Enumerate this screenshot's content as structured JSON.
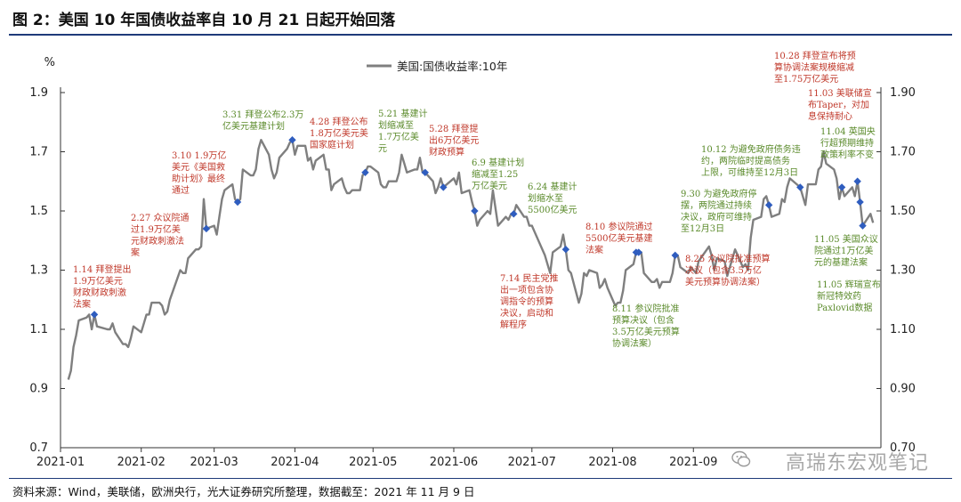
{
  "figure_title": "图 2：美国 10 年国债收益率自 10 月 21 日起开始回落",
  "source_note": "资料来源：Wind，美联储，欧洲央行，光大证券研究所整理，数据截至：2021 年 11 月 9 日",
  "watermark": "高瑞东宏观笔记",
  "colors": {
    "line": "#7f7f7f",
    "marker": "#2f5dbf",
    "red": "#c0392b",
    "green": "#5a8a2a",
    "rule": "#1f3b7a"
  },
  "chart_data": {
    "type": "line",
    "title": "",
    "ylabel": "%",
    "ylim": [
      0.7,
      1.9
    ],
    "yticks_left": [
      "1.9",
      "1.7",
      "1.5",
      "1.3",
      "1.1",
      "0.9",
      "0.7"
    ],
    "yticks_right": [
      "1.90",
      "1.70",
      "1.50",
      "1.30",
      "1.10",
      "0.90",
      "0.70"
    ],
    "x_tick_labels": [
      "2021-01",
      "2021-02",
      "2021-03",
      "2021-04",
      "2021-05",
      "2021-06",
      "2021-07",
      "2021-08",
      "2021-09"
    ],
    "legend": {
      "position": "top-center"
    },
    "series": [
      {
        "name": "美国:国债收益率:10年",
        "points": [
          [
            "2021-01-04",
            0.93
          ],
          [
            "2021-01-05",
            0.96
          ],
          [
            "2021-01-06",
            1.04
          ],
          [
            "2021-01-07",
            1.08
          ],
          [
            "2021-01-08",
            1.13
          ],
          [
            "2021-01-11",
            1.14
          ],
          [
            "2021-01-12",
            1.15
          ],
          [
            "2021-01-13",
            1.1
          ],
          [
            "2021-01-14",
            1.15
          ],
          [
            "2021-01-15",
            1.11
          ],
          [
            "2021-01-19",
            1.1
          ],
          [
            "2021-01-20",
            1.1
          ],
          [
            "2021-01-21",
            1.12
          ],
          [
            "2021-01-22",
            1.09
          ],
          [
            "2021-01-25",
            1.05
          ],
          [
            "2021-01-26",
            1.05
          ],
          [
            "2021-01-27",
            1.04
          ],
          [
            "2021-01-28",
            1.07
          ],
          [
            "2021-01-29",
            1.11
          ],
          [
            "2021-02-01",
            1.09
          ],
          [
            "2021-02-02",
            1.12
          ],
          [
            "2021-02-03",
            1.15
          ],
          [
            "2021-02-04",
            1.15
          ],
          [
            "2021-02-05",
            1.19
          ],
          [
            "2021-02-08",
            1.19
          ],
          [
            "2021-02-09",
            1.18
          ],
          [
            "2021-02-10",
            1.15
          ],
          [
            "2021-02-11",
            1.16
          ],
          [
            "2021-02-12",
            1.2
          ],
          [
            "2021-02-16",
            1.3
          ],
          [
            "2021-02-17",
            1.29
          ],
          [
            "2021-02-18",
            1.29
          ],
          [
            "2021-02-19",
            1.34
          ],
          [
            "2021-02-22",
            1.37
          ],
          [
            "2021-02-23",
            1.37
          ],
          [
            "2021-02-24",
            1.38
          ],
          [
            "2021-02-25",
            1.54
          ],
          [
            "2021-02-26",
            1.44
          ],
          [
            "2021-03-01",
            1.45
          ],
          [
            "2021-03-02",
            1.42
          ],
          [
            "2021-03-03",
            1.48
          ],
          [
            "2021-03-04",
            1.54
          ],
          [
            "2021-03-05",
            1.57
          ],
          [
            "2021-03-08",
            1.59
          ],
          [
            "2021-03-09",
            1.54
          ],
          [
            "2021-03-10",
            1.53
          ],
          [
            "2021-03-11",
            1.54
          ],
          [
            "2021-03-12",
            1.64
          ],
          [
            "2021-03-15",
            1.62
          ],
          [
            "2021-03-16",
            1.62
          ],
          [
            "2021-03-17",
            1.64
          ],
          [
            "2021-03-18",
            1.71
          ],
          [
            "2021-03-19",
            1.74
          ],
          [
            "2021-03-22",
            1.69
          ],
          [
            "2021-03-23",
            1.64
          ],
          [
            "2021-03-24",
            1.61
          ],
          [
            "2021-03-25",
            1.63
          ],
          [
            "2021-03-26",
            1.68
          ],
          [
            "2021-03-29",
            1.71
          ],
          [
            "2021-03-30",
            1.73
          ],
          [
            "2021-03-31",
            1.74
          ],
          [
            "2021-04-01",
            1.69
          ],
          [
            "2021-04-02",
            1.72
          ],
          [
            "2021-04-05",
            1.72
          ],
          [
            "2021-04-06",
            1.67
          ],
          [
            "2021-04-07",
            1.68
          ],
          [
            "2021-04-08",
            1.64
          ],
          [
            "2021-04-09",
            1.67
          ],
          [
            "2021-04-12",
            1.69
          ],
          [
            "2021-04-13",
            1.64
          ],
          [
            "2021-04-14",
            1.64
          ],
          [
            "2021-04-15",
            1.57
          ],
          [
            "2021-04-16",
            1.59
          ],
          [
            "2021-04-19",
            1.61
          ],
          [
            "2021-04-20",
            1.58
          ],
          [
            "2021-04-21",
            1.56
          ],
          [
            "2021-04-22",
            1.56
          ],
          [
            "2021-04-23",
            1.57
          ],
          [
            "2021-04-26",
            1.57
          ],
          [
            "2021-04-27",
            1.62
          ],
          [
            "2021-04-28",
            1.63
          ],
          [
            "2021-04-29",
            1.65
          ],
          [
            "2021-04-30",
            1.65
          ],
          [
            "2021-05-03",
            1.63
          ],
          [
            "2021-05-04",
            1.59
          ],
          [
            "2021-05-05",
            1.58
          ],
          [
            "2021-05-06",
            1.58
          ],
          [
            "2021-05-07",
            1.6
          ],
          [
            "2021-05-10",
            1.6
          ],
          [
            "2021-05-11",
            1.63
          ],
          [
            "2021-05-12",
            1.69
          ],
          [
            "2021-05-13",
            1.66
          ],
          [
            "2021-05-14",
            1.63
          ],
          [
            "2021-05-17",
            1.64
          ],
          [
            "2021-05-18",
            1.64
          ],
          [
            "2021-05-19",
            1.68
          ],
          [
            "2021-05-20",
            1.63
          ],
          [
            "2021-05-21",
            1.63
          ],
          [
            "2021-05-24",
            1.6
          ],
          [
            "2021-05-25",
            1.56
          ],
          [
            "2021-05-26",
            1.58
          ],
          [
            "2021-05-27",
            1.61
          ],
          [
            "2021-05-28",
            1.58
          ],
          [
            "2021-06-01",
            1.61
          ],
          [
            "2021-06-02",
            1.59
          ],
          [
            "2021-06-03",
            1.63
          ],
          [
            "2021-06-04",
            1.56
          ],
          [
            "2021-06-07",
            1.57
          ],
          [
            "2021-06-08",
            1.53
          ],
          [
            "2021-06-09",
            1.5
          ],
          [
            "2021-06-10",
            1.45
          ],
          [
            "2021-06-11",
            1.47
          ],
          [
            "2021-06-14",
            1.5
          ],
          [
            "2021-06-15",
            1.49
          ],
          [
            "2021-06-16",
            1.57
          ],
          [
            "2021-06-17",
            1.51
          ],
          [
            "2021-06-18",
            1.45
          ],
          [
            "2021-06-21",
            1.48
          ],
          [
            "2021-06-22",
            1.47
          ],
          [
            "2021-06-23",
            1.49
          ],
          [
            "2021-06-24",
            1.49
          ],
          [
            "2021-06-25",
            1.52
          ],
          [
            "2021-06-28",
            1.48
          ],
          [
            "2021-06-29",
            1.48
          ],
          [
            "2021-06-30",
            1.45
          ],
          [
            "2021-07-01",
            1.45
          ],
          [
            "2021-07-02",
            1.43
          ],
          [
            "2021-07-06",
            1.35
          ],
          [
            "2021-07-07",
            1.32
          ],
          [
            "2021-07-08",
            1.29
          ],
          [
            "2021-07-09",
            1.36
          ],
          [
            "2021-07-12",
            1.38
          ],
          [
            "2021-07-13",
            1.42
          ],
          [
            "2021-07-14",
            1.37
          ],
          [
            "2021-07-15",
            1.3
          ],
          [
            "2021-07-16",
            1.29
          ],
          [
            "2021-07-19",
            1.19
          ],
          [
            "2021-07-20",
            1.22
          ],
          [
            "2021-07-21",
            1.29
          ],
          [
            "2021-07-22",
            1.28
          ],
          [
            "2021-07-23",
            1.3
          ],
          [
            "2021-07-26",
            1.29
          ],
          [
            "2021-07-27",
            1.24
          ],
          [
            "2021-07-28",
            1.25
          ],
          [
            "2021-07-29",
            1.27
          ],
          [
            "2021-07-30",
            1.24
          ],
          [
            "2021-08-02",
            1.18
          ],
          [
            "2021-08-03",
            1.19
          ],
          [
            "2021-08-04",
            1.19
          ],
          [
            "2021-08-05",
            1.23
          ],
          [
            "2021-08-06",
            1.3
          ],
          [
            "2021-08-09",
            1.32
          ],
          [
            "2021-08-10",
            1.36
          ],
          [
            "2021-08-11",
            1.36
          ],
          [
            "2021-08-12",
            1.36
          ],
          [
            "2021-08-13",
            1.29
          ],
          [
            "2021-08-16",
            1.26
          ],
          [
            "2021-08-17",
            1.26
          ],
          [
            "2021-08-18",
            1.27
          ],
          [
            "2021-08-19",
            1.24
          ],
          [
            "2021-08-20",
            1.26
          ],
          [
            "2021-08-23",
            1.26
          ],
          [
            "2021-08-24",
            1.29
          ],
          [
            "2021-08-25",
            1.35
          ],
          [
            "2021-08-26",
            1.35
          ],
          [
            "2021-08-27",
            1.31
          ],
          [
            "2021-08-30",
            1.29
          ],
          [
            "2021-08-31",
            1.31
          ],
          [
            "2021-09-01",
            1.3
          ],
          [
            "2021-09-02",
            1.29
          ],
          [
            "2021-09-03",
            1.33
          ],
          [
            "2021-09-07",
            1.38
          ],
          [
            "2021-09-08",
            1.35
          ],
          [
            "2021-09-09",
            1.3
          ],
          [
            "2021-09-10",
            1.34
          ],
          [
            "2021-09-13",
            1.33
          ],
          [
            "2021-09-14",
            1.28
          ],
          [
            "2021-09-15",
            1.31
          ],
          [
            "2021-09-16",
            1.34
          ],
          [
            "2021-09-17",
            1.37
          ],
          [
            "2021-09-20",
            1.31
          ],
          [
            "2021-09-21",
            1.32
          ],
          [
            "2021-09-22",
            1.3
          ],
          [
            "2021-09-23",
            1.41
          ],
          [
            "2021-09-24",
            1.47
          ],
          [
            "2021-09-27",
            1.48
          ],
          [
            "2021-09-28",
            1.54
          ],
          [
            "2021-09-29",
            1.55
          ],
          [
            "2021-09-30",
            1.52
          ],
          [
            "2021-10-01",
            1.48
          ],
          [
            "2021-10-04",
            1.49
          ],
          [
            "2021-10-05",
            1.54
          ],
          [
            "2021-10-06",
            1.53
          ],
          [
            "2021-10-07",
            1.58
          ],
          [
            "2021-10-08",
            1.61
          ],
          [
            "2021-10-12",
            1.58
          ],
          [
            "2021-10-13",
            1.55
          ],
          [
            "2021-10-14",
            1.52
          ],
          [
            "2021-10-15",
            1.59
          ],
          [
            "2021-10-18",
            1.59
          ],
          [
            "2021-10-19",
            1.64
          ],
          [
            "2021-10-20",
            1.65
          ],
          [
            "2021-10-21",
            1.7
          ],
          [
            "2021-10-22",
            1.66
          ],
          [
            "2021-10-25",
            1.64
          ],
          [
            "2021-10-26",
            1.61
          ],
          [
            "2021-10-27",
            1.54
          ],
          [
            "2021-10-28",
            1.58
          ],
          [
            "2021-10-29",
            1.55
          ],
          [
            "2021-11-01",
            1.58
          ],
          [
            "2021-11-02",
            1.55
          ],
          [
            "2021-11-03",
            1.6
          ],
          [
            "2021-11-04",
            1.53
          ],
          [
            "2021-11-05",
            1.45
          ],
          [
            "2021-11-08",
            1.49
          ],
          [
            "2021-11-09",
            1.46
          ]
        ]
      }
    ],
    "markers": [
      "2021-01-14",
      "2021-02-26",
      "2021-03-10",
      "2021-03-31",
      "2021-04-28",
      "2021-05-21",
      "2021-05-28",
      "2021-06-09",
      "2021-06-24",
      "2021-07-14",
      "2021-08-10",
      "2021-08-11",
      "2021-08-25",
      "2021-09-30",
      "2021-10-12",
      "2021-10-28",
      "2021-11-03",
      "2021-11-04",
      "2021-11-05"
    ],
    "annotations": [
      {
        "color": "red",
        "lines": [
          "1.14 拜登提出",
          "1.9万亿美元",
          "财政财政刺激",
          "法案"
        ]
      },
      {
        "color": "red",
        "lines": [
          "2.27 众议院通",
          "过1.9万亿美",
          "元财政刺激法",
          "案"
        ]
      },
      {
        "color": "red",
        "lines": [
          "3.10 1.9万亿",
          "美元《美国救",
          "助计划》最终",
          "通过"
        ]
      },
      {
        "color": "green",
        "lines": [
          "3.31 拜登公布2.3万",
          "亿美元基建计划"
        ]
      },
      {
        "color": "red",
        "lines": [
          "4.28 拜登公布",
          "1.8万亿美元美",
          "国家庭计划"
        ]
      },
      {
        "color": "green",
        "lines": [
          "5.21 基建计",
          "划缩减至",
          "1.7万亿美",
          "元"
        ]
      },
      {
        "color": "red",
        "lines": [
          "5.28 拜登提",
          "出6万亿美元",
          "财政预算"
        ]
      },
      {
        "color": "green",
        "lines": [
          "6.9 基建计划",
          "缩减至1.25",
          "万亿美元"
        ]
      },
      {
        "color": "green",
        "lines": [
          "6.24 基建计",
          "划缩水至",
          "5500亿美元"
        ]
      },
      {
        "color": "red",
        "lines": [
          "7.14 民主党推",
          "出一项包含协",
          "调指令的预算",
          "决议，启动和",
          "解程序"
        ]
      },
      {
        "color": "red",
        "lines": [
          "8.10 参议院通过",
          "5500亿美元基建",
          "法案"
        ]
      },
      {
        "color": "green",
        "lines": [
          "8.11 参议院批准",
          "预算决议（包含",
          "3.5万亿美元预算",
          "协调法案）"
        ]
      },
      {
        "color": "red",
        "lines": [
          "8.25 众议院批准预算",
          "决议（包含3.5万亿",
          "美元预算协调法案）"
        ]
      },
      {
        "color": "green",
        "lines": [
          "9.30 为避免政府停",
          "摆，两院通过持续",
          "决议，政府可维持",
          "至12月3日"
        ]
      },
      {
        "color": "green",
        "lines": [
          "10.12 为避免政府债务违",
          "约，两院临时提高债务",
          "上限，可维持至12月3日"
        ]
      },
      {
        "color": "red",
        "lines": [
          "10.28 拜登宣布将预",
          "算协调法案规模缩减",
          "至1.75万亿美元"
        ]
      },
      {
        "color": "red",
        "lines": [
          "11.03 美联储宣",
          "布Taper，对加",
          "息保持耐心"
        ]
      },
      {
        "color": "green",
        "lines": [
          "11.04 英国央",
          "行超预期维持",
          "政策利率不变"
        ]
      },
      {
        "color": "green",
        "lines": [
          "11.05 美国众议",
          "院通过1万亿美",
          "元的基建法案"
        ]
      },
      {
        "color": "green",
        "lines": [
          "11.05 辉瑞宣布",
          "新冠特效药",
          "Paxlovid数据"
        ]
      }
    ]
  }
}
